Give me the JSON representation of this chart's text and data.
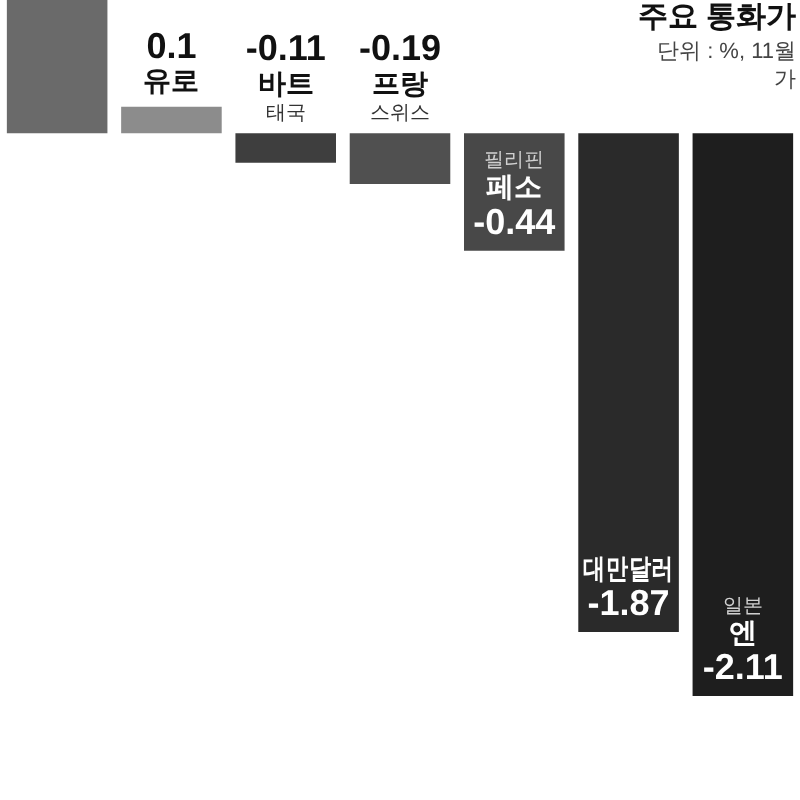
{
  "chart_data": {
    "type": "bar",
    "title": "주요 통화가",
    "subtitle": "단위 : %, 11월",
    "annotations": [
      "가"
    ],
    "categories": [
      null,
      "유로",
      "바트\n태국",
      "프랑\n스위스",
      "필리핀\n페소",
      "대만달러",
      "일본\n엔"
    ],
    "values": [
      0.5,
      0.1,
      -0.11,
      -0.19,
      -0.44,
      -1.87,
      -2.11
    ],
    "colors": [
      "#6a6a6a",
      "#8c8c8c",
      "#3e3e3e",
      "#505050",
      "#484848",
      "#2a2a2a",
      "#1e1e1e"
    ],
    "value_labels": [
      null,
      "0.1",
      "-0.11",
      "-0.19",
      "-0.44",
      "-1.87",
      "-2.11"
    ],
    "tick_labels": false
  }
}
